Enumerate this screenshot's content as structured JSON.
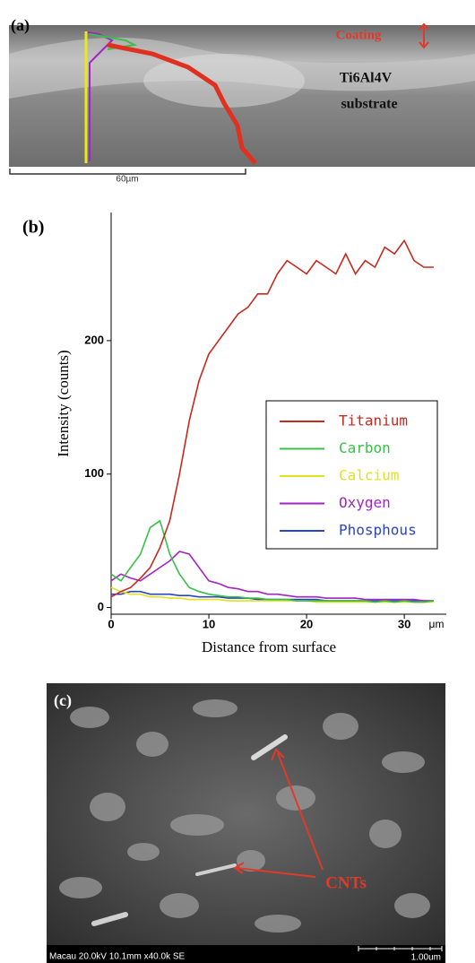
{
  "panel_a": {
    "label": "(a)",
    "coating": "Coating",
    "substrate_line1": "Ti6Al4V",
    "substrate_line2": "substrate",
    "scale": "60µm"
  },
  "chart_data": {
    "type": "line",
    "label": "(b)",
    "x_label": "Distance from surface",
    "y_label": "Intensity (counts)",
    "x_unit": "μm",
    "x": [
      0,
      1,
      2,
      3,
      4,
      5,
      6,
      7,
      8,
      9,
      10,
      11,
      12,
      13,
      14,
      15,
      16,
      17,
      18,
      19,
      20,
      21,
      22,
      23,
      24,
      25,
      26,
      27,
      28,
      29,
      30,
      31,
      32,
      33
    ],
    "series": [
      {
        "name": "Titanium",
        "color": "#c62a1e",
        "values": [
          8,
          12,
          15,
          22,
          30,
          45,
          65,
          100,
          140,
          170,
          190,
          200,
          210,
          220,
          225,
          235,
          235,
          250,
          260,
          255,
          250,
          260,
          255,
          250,
          265,
          250,
          260,
          255,
          270,
          265,
          275,
          260,
          255,
          255
        ]
      },
      {
        "name": "Carbon",
        "color": "#38c048",
        "values": [
          25,
          20,
          30,
          40,
          60,
          65,
          40,
          25,
          15,
          12,
          10,
          9,
          8,
          8,
          7,
          7,
          6,
          6,
          6,
          5,
          5,
          5,
          5,
          5,
          5,
          5,
          5,
          4,
          5,
          4,
          5,
          4,
          4,
          5
        ]
      },
      {
        "name": "Calcium",
        "color": "#e2e21c",
        "values": [
          15,
          12,
          10,
          10,
          8,
          8,
          7,
          7,
          6,
          6,
          6,
          6,
          5,
          5,
          5,
          5,
          5,
          5,
          5,
          5,
          5,
          4,
          4,
          4,
          4,
          4,
          4,
          4,
          4,
          4,
          4,
          4,
          4,
          4
        ]
      },
      {
        "name": "Oxygen",
        "color": "#a424c4",
        "values": [
          20,
          25,
          22,
          20,
          25,
          30,
          35,
          42,
          40,
          30,
          20,
          18,
          15,
          14,
          12,
          12,
          10,
          10,
          9,
          8,
          8,
          8,
          7,
          7,
          7,
          7,
          6,
          6,
          6,
          6,
          6,
          6,
          5,
          5
        ]
      },
      {
        "name": "Phosphous",
        "color": "#2a44c4",
        "values": [
          10,
          10,
          12,
          12,
          10,
          10,
          10,
          9,
          9,
          8,
          8,
          8,
          7,
          7,
          7,
          6,
          6,
          6,
          6,
          6,
          6,
          6,
          5,
          5,
          5,
          5,
          5,
          5,
          5,
          5,
          5,
          5,
          5,
          5
        ]
      }
    ],
    "xlim": [
      0,
      34.3
    ],
    "ylim": [
      -5,
      296
    ],
    "xticks": [
      0,
      10,
      20,
      30
    ],
    "yticks": [
      0,
      100,
      200
    ],
    "legend": "right"
  },
  "panel_c": {
    "label": "(c)",
    "annotation": "CNTs",
    "info": "Macau 20.0kV 10.1mm x40.0k SE",
    "scale": "1.00um"
  }
}
